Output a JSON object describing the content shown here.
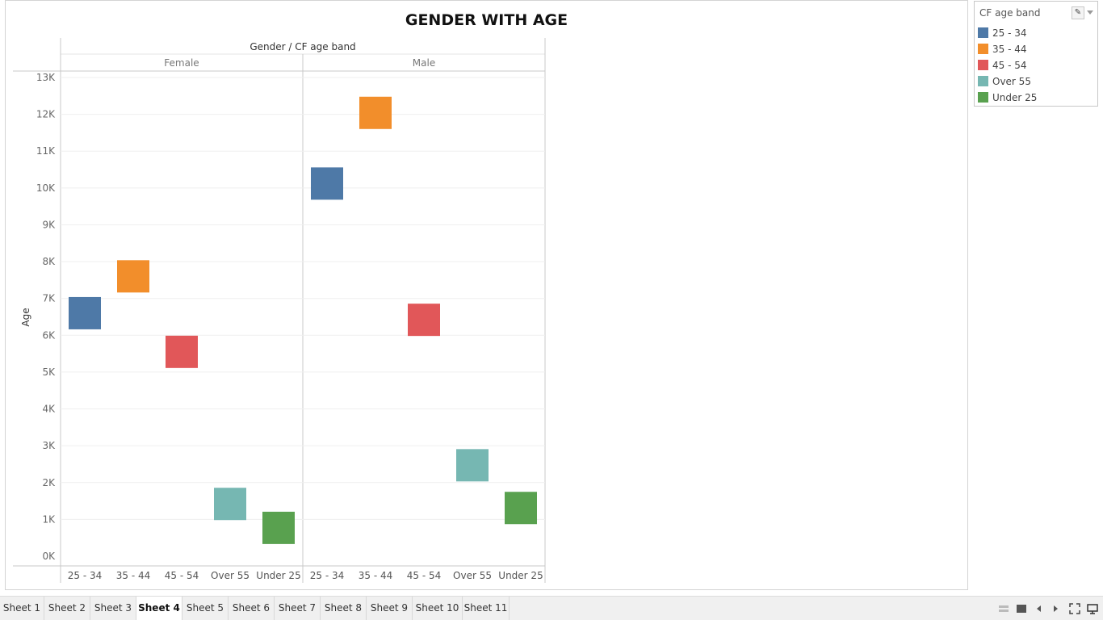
{
  "chart_data": {
    "type": "square",
    "title": "GENDER WITH AGE",
    "header_label": "Gender  /  CF age band",
    "panels": [
      "Female",
      "Male"
    ],
    "categories": [
      "25 - 34",
      "35 - 44",
      "45 - 54",
      "Over 55",
      "Under 25"
    ],
    "ylabel": "Age",
    "ylim": [
      0,
      13000
    ],
    "yticks": [
      {
        "value": 0,
        "label": "0K"
      },
      {
        "value": 1000,
        "label": "1K"
      },
      {
        "value": 2000,
        "label": "2K"
      },
      {
        "value": 3000,
        "label": "3K"
      },
      {
        "value": 4000,
        "label": "4K"
      },
      {
        "value": 5000,
        "label": "5K"
      },
      {
        "value": 6000,
        "label": "6K"
      },
      {
        "value": 7000,
        "label": "7K"
      },
      {
        "value": 8000,
        "label": "8K"
      },
      {
        "value": 9000,
        "label": "9K"
      },
      {
        "value": 10000,
        "label": "10K"
      },
      {
        "value": 11000,
        "label": "11K"
      },
      {
        "value": 12000,
        "label": "12K"
      },
      {
        "value": 13000,
        "label": "13K"
      }
    ],
    "grid": true,
    "series": [
      {
        "panel": "Female",
        "values": [
          6600,
          7600,
          5550,
          1420,
          770
        ]
      },
      {
        "panel": "Male",
        "values": [
          10120,
          12040,
          6420,
          2470,
          1310
        ]
      }
    ],
    "colors": {
      "25 - 34": "#4e79a7",
      "35 - 44": "#f28e2b",
      "45 - 54": "#e15759",
      "Over 55": "#76b7b2",
      "Under 25": "#59a14f"
    }
  },
  "legend": {
    "title": "CF age band",
    "items": [
      {
        "label": "25 - 34",
        "color": "#4e79a7"
      },
      {
        "label": "35 - 44",
        "color": "#f28e2b"
      },
      {
        "label": "45 - 54",
        "color": "#e15759"
      },
      {
        "label": "Over 55",
        "color": "#76b7b2"
      },
      {
        "label": "Under 25",
        "color": "#59a14f"
      }
    ]
  },
  "tabs": [
    {
      "label": "Sheet 1",
      "active": false
    },
    {
      "label": "Sheet 2",
      "active": false
    },
    {
      "label": "Sheet 3",
      "active": false
    },
    {
      "label": "Sheet 4",
      "active": true
    },
    {
      "label": "Sheet 5",
      "active": false
    },
    {
      "label": "Sheet 6",
      "active": false
    },
    {
      "label": "Sheet 7",
      "active": false
    },
    {
      "label": "Sheet 8",
      "active": false
    },
    {
      "label": "Sheet 9",
      "active": false
    },
    {
      "label": "Sheet 10",
      "active": false
    },
    {
      "label": "Sheet 11",
      "active": false
    }
  ],
  "nav_icons": [
    "show-sheet-sorter-icon",
    "show-filmstrip-icon",
    "previous-sheet-icon",
    "next-sheet-icon",
    "fullscreen-icon",
    "presentation-mode-icon"
  ]
}
